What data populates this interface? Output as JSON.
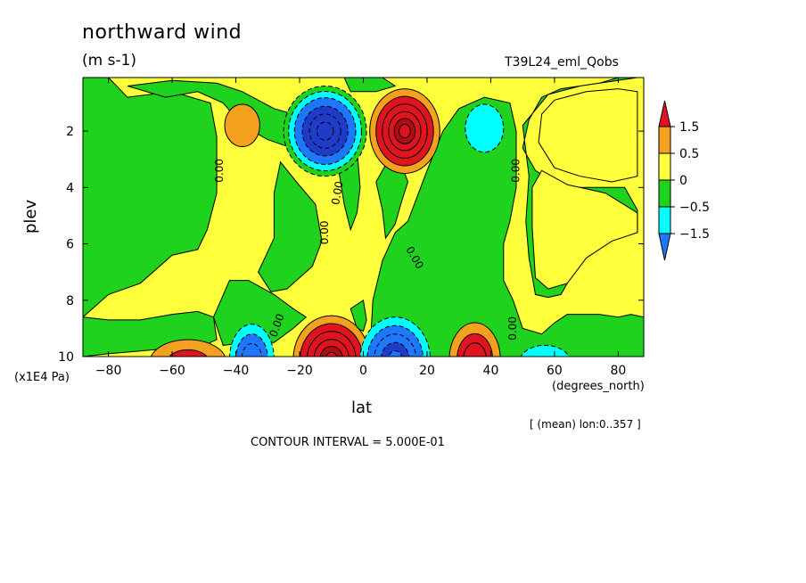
{
  "title": "northward wind",
  "units": "(m s-1)",
  "run_label": "T39L24_eml_Qobs",
  "mean_note": "[ (mean) lon:0..357 ]",
  "contour_note": "CONTOUR INTERVAL = 5.000E-01",
  "chart_data": {
    "type": "heatmap",
    "xlabel": "lat",
    "xunit": "(degrees_north)",
    "ylabel": "plev",
    "yunit": "(x1E4 Pa)",
    "xlim": [
      -88,
      88
    ],
    "ylim": [
      10,
      0.1
    ],
    "xticks": [
      -80,
      -60,
      -40,
      -20,
      0,
      20,
      40,
      60,
      80
    ],
    "yticks": [
      2,
      4,
      6,
      8,
      10
    ],
    "contour_label": "0.00",
    "colorbar": {
      "labels": [
        "1.5",
        "0.5",
        "0",
        "-0.5",
        "-1.5"
      ],
      "colors": [
        "#e0141e",
        "#f5a01e",
        "#ffff3c",
        "#1ed21e",
        "#00ffff",
        "#1e78ff"
      ]
    },
    "features": [
      {
        "lat": -12,
        "plev": 2.0,
        "sign": "negative",
        "peak": -2.0
      },
      {
        "lat": 13,
        "plev": 2.0,
        "sign": "positive",
        "peak": 2.0
      },
      {
        "lat": -10,
        "plev": 9.8,
        "sign": "positive",
        "peak": 2.0
      },
      {
        "lat": 10,
        "plev": 9.8,
        "sign": "negative",
        "peak": -1.5
      },
      {
        "lat": -35,
        "plev": 9.8,
        "sign": "negative",
        "peak": -1.5
      },
      {
        "lat": 35,
        "plev": 9.8,
        "sign": "positive",
        "peak": 1.5
      },
      {
        "lat": -55,
        "plev": 9.9,
        "sign": "positive",
        "peak": 1.0
      },
      {
        "lat": 57,
        "plev": 9.9,
        "sign": "negative",
        "peak": -0.7
      },
      {
        "lat": -38,
        "plev": 1.8,
        "sign": "positive",
        "peak": 0.6
      },
      {
        "lat": 38,
        "plev": 2.0,
        "sign": "negative",
        "peak": -0.6
      }
    ]
  }
}
